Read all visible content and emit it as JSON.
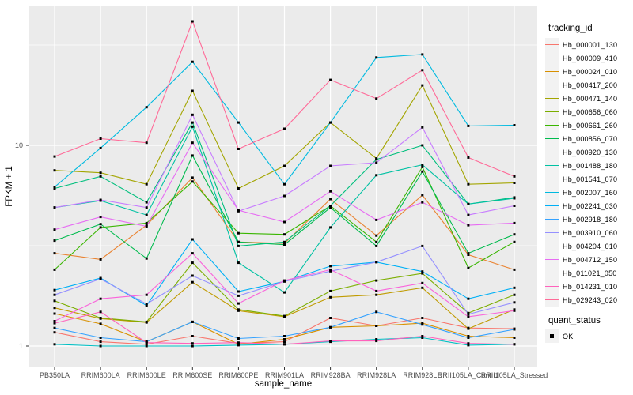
{
  "chart_data": {
    "type": "line",
    "title": "",
    "xlabel": "sample_name",
    "ylabel": "FPKM + 1",
    "y_scale": "log10",
    "y_ticks": [
      1,
      10
    ],
    "ylim_px_note": "log decade = 254px, value 1 at y=438, value 10 at y=184",
    "grid": "white on grey panel, minor breaks at 3.16 and 31.6",
    "legend_position": "right",
    "panel_bg": "#EBEBEB",
    "grid_color": "#FFFFFF",
    "tick_label_color": "#4D4D4D",
    "point_shape": "filled-square",
    "point_color": "#000000",
    "categories": [
      "PB350LA",
      "RRIM600LA",
      "RRIM600LE",
      "RRIM600SE",
      "RRIM600PE",
      "RRIM901LA",
      "RRIM928BA",
      "RRIM928LA",
      "RRIM928LE",
      "RRII105LA_Control",
      "RRII105LA_Stressed"
    ],
    "series": [
      {
        "name": "Hb_000001_130",
        "color": "#F8766D",
        "values": [
          1.17,
          1.05,
          1.02,
          1.12,
          1.03,
          1.05,
          1.38,
          1.26,
          1.38,
          1.23,
          1.22
        ]
      },
      {
        "name": "Hb_000009_410",
        "color": "#EA8331",
        "values": [
          2.9,
          2.7,
          4.0,
          6.9,
          3.3,
          3.25,
          5.4,
          3.55,
          5.65,
          2.85,
          2.4
        ]
      },
      {
        "name": "Hb_000024_010",
        "color": "#D89000",
        "values": [
          1.45,
          1.29,
          1.05,
          1.32,
          1.02,
          1.08,
          1.24,
          1.26,
          1.3,
          1.12,
          1.1
        ]
      },
      {
        "name": "Hb_000417_200",
        "color": "#C09B00",
        "values": [
          1.55,
          1.37,
          1.31,
          2.08,
          1.5,
          1.4,
          1.75,
          1.8,
          1.95,
          1.22,
          1.52
        ]
      },
      {
        "name": "Hb_000471_140",
        "color": "#A3A500",
        "values": [
          7.5,
          7.3,
          6.4,
          18.7,
          6.1,
          7.9,
          13.0,
          8.6,
          19.9,
          6.4,
          6.5
        ]
      },
      {
        "name": "Hb_000656_060",
        "color": "#7CAE00",
        "values": [
          1.68,
          1.38,
          1.32,
          2.6,
          1.52,
          1.41,
          1.88,
          2.12,
          2.3,
          1.46,
          1.8
        ]
      },
      {
        "name": "Hb_000661_260",
        "color": "#39B600",
        "values": [
          2.4,
          3.9,
          4.1,
          6.6,
          3.65,
          3.6,
          5.0,
          3.3,
          7.8,
          2.45,
          3.3
        ]
      },
      {
        "name": "Hb_000856_070",
        "color": "#00BB4E",
        "values": [
          3.35,
          4.05,
          2.73,
          8.9,
          3.3,
          3.2,
          4.9,
          3.15,
          7.4,
          2.9,
          3.6
        ]
      },
      {
        "name": "Hb_000920_130",
        "color": "#00BF7D",
        "values": [
          6.1,
          7.0,
          5.2,
          13.0,
          3.15,
          3.3,
          5.0,
          8.5,
          10.0,
          5.1,
          5.5
        ]
      },
      {
        "name": "Hb_001488_180",
        "color": "#00C1A3",
        "values": [
          4.9,
          5.3,
          4.5,
          12.4,
          2.6,
          1.85,
          3.9,
          7.1,
          8.0,
          5.1,
          5.45
        ]
      },
      {
        "name": "Hb_001541_070",
        "color": "#00BFC4",
        "values": [
          1.02,
          1.0,
          1.0,
          1.0,
          1.01,
          1.02,
          1.05,
          1.08,
          1.1,
          1.01,
          1.02
        ]
      },
      {
        "name": "Hb_002007_160",
        "color": "#00BAE0",
        "values": [
          6.2,
          9.7,
          15.5,
          26.1,
          13.0,
          6.4,
          13.0,
          27.4,
          28.4,
          12.5,
          12.6
        ]
      },
      {
        "name": "Hb_002241_030",
        "color": "#00B0F6",
        "values": [
          1.9,
          2.18,
          1.59,
          3.4,
          1.87,
          2.1,
          2.5,
          2.62,
          2.35,
          1.72,
          1.95
        ]
      },
      {
        "name": "Hb_002918_180",
        "color": "#35A2FF",
        "values": [
          1.23,
          1.1,
          1.05,
          1.32,
          1.09,
          1.12,
          1.24,
          1.48,
          1.28,
          1.1,
          1.21
        ]
      },
      {
        "name": "Hb_003910_060",
        "color": "#9590FF",
        "values": [
          1.8,
          2.16,
          1.62,
          2.24,
          1.78,
          2.1,
          2.36,
          2.62,
          3.15,
          1.44,
          1.65
        ]
      },
      {
        "name": "Hb_004204_010",
        "color": "#C77CFF",
        "values": [
          4.9,
          5.35,
          4.9,
          14.2,
          4.7,
          5.6,
          7.9,
          8.2,
          12.3,
          4.5,
          5.0
        ]
      },
      {
        "name": "Hb_004712_150",
        "color": "#E76BF3",
        "values": [
          3.8,
          4.4,
          3.95,
          10.3,
          4.75,
          4.15,
          5.9,
          4.25,
          5.2,
          4.0,
          4.1
        ]
      },
      {
        "name": "Hb_011021_050",
        "color": "#FA62DB",
        "values": [
          1.33,
          1.72,
          1.8,
          2.9,
          1.63,
          2.12,
          2.4,
          1.88,
          2.06,
          1.4,
          1.5
        ]
      },
      {
        "name": "Hb_014231_010",
        "color": "#FF62BC",
        "values": [
          1.3,
          1.48,
          1.04,
          1.03,
          1.04,
          1.02,
          1.06,
          1.06,
          1.12,
          1.03,
          1.02
        ]
      },
      {
        "name": "Hb_029243_020",
        "color": "#FF6A98",
        "values": [
          8.8,
          10.8,
          10.3,
          41.5,
          9.6,
          12.1,
          21.2,
          17.1,
          23.7,
          8.7,
          7.0
        ]
      }
    ]
  },
  "legend": {
    "tracking_id_title": "tracking_id",
    "quant_status_title": "quant_status",
    "quant_status_items": [
      {
        "label": "OK"
      }
    ]
  }
}
